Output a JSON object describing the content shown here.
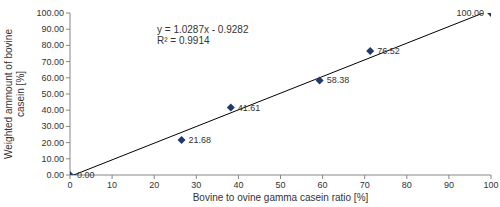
{
  "chart_data": {
    "type": "scatter",
    "x_label": "Bovine to ovine gamma casein ratio [%]",
    "y_label": [
      "Weighted ammount of bovine",
      "casein [%]"
    ],
    "x": [
      0,
      26.5,
      38.2,
      59.3,
      71.3,
      100
    ],
    "values": [
      0,
      21.68,
      41.61,
      58.38,
      76.52,
      100
    ],
    "value_labels": [
      "0.00",
      "21.68",
      "41.61",
      "58.38",
      "76.52",
      "100.00"
    ],
    "data_labels": true,
    "color": "#1f3a6e",
    "marker": "diamond",
    "grid": false,
    "xlim": [
      0,
      100
    ],
    "xticks": [
      0,
      10,
      20,
      30,
      40,
      50,
      60,
      70,
      80,
      90,
      100
    ],
    "ylim": [
      0,
      100
    ],
    "yticks": [
      {
        "value": 0,
        "label": "0.00"
      },
      {
        "value": 10,
        "label": "10.00"
      },
      {
        "value": 20,
        "label": "20.00"
      },
      {
        "value": 30,
        "label": "30.00"
      },
      {
        "value": 40,
        "label": "40.00"
      },
      {
        "value": 50,
        "label": "50.00"
      },
      {
        "value": 60,
        "label": "60.00"
      },
      {
        "value": 70,
        "label": "70.00"
      },
      {
        "value": 80,
        "label": "80.00"
      },
      {
        "value": 90,
        "label": "90.00"
      },
      {
        "value": 100,
        "label": "100.00"
      }
    ],
    "trendline": {
      "x": [
        0,
        100
      ],
      "values": [
        -0.9282,
        101.9418
      ]
    },
    "annotations": [
      "y = 1.0287x - 0.9282",
      "R² = 0.9914"
    ]
  }
}
